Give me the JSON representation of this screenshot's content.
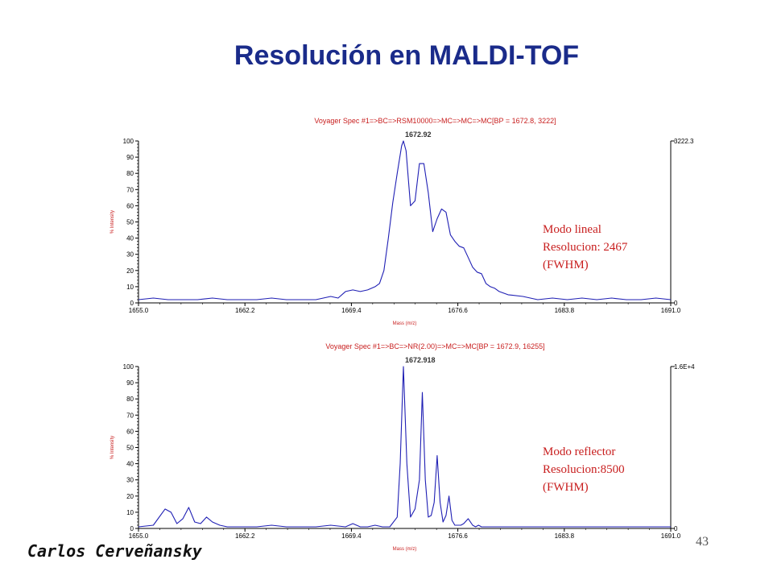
{
  "slide": {
    "title": "Resolución en MALDI-TOF",
    "author": "Carlos Cerveñansky",
    "page_number": "43"
  },
  "colors": {
    "title": "#1a2b8a",
    "trace": "#1f1fb4",
    "red_text": "#c81e1e",
    "axis": "#000000"
  },
  "chart_data": [
    {
      "type": "line",
      "title": "Voyager Spec #1=>BC=>RSM10000=>MC=>MC=>MC[BP = 1672.8, 3222]",
      "xlabel": "Mass (m/z)",
      "ylabel": "% Intensity",
      "xlim": [
        1655.0,
        1691.0
      ],
      "ylim": [
        0,
        100
      ],
      "x_ticks": [
        "1655.0",
        "1662.2",
        "1669.4",
        "1676.6",
        "1683.8",
        "1691.0"
      ],
      "y_ticks": [
        "0",
        "10",
        "20",
        "30",
        "40",
        "50",
        "60",
        "70",
        "80",
        "90",
        "100"
      ],
      "right_axis_labels": {
        "top": "3222.3",
        "bottom": "0"
      },
      "peak_label": {
        "text": "1672.92",
        "x": 1672.92,
        "y": 100
      },
      "annotation": [
        "Modo lineal",
        "Resolucion: 2467",
        "(FWHM)"
      ],
      "series": [
        {
          "x": [
            1655.0,
            1656.0,
            1657.0,
            1658.0,
            1659.0,
            1660.0,
            1661.0,
            1662.0,
            1663.0,
            1664.0,
            1665.0,
            1666.0,
            1667.0,
            1668.0,
            1668.5,
            1669.0,
            1669.5,
            1670.0,
            1670.5,
            1671.0,
            1671.3,
            1671.6,
            1671.9,
            1672.2,
            1672.5,
            1672.8,
            1672.92,
            1673.1,
            1673.4,
            1673.7,
            1674.0,
            1674.3,
            1674.6,
            1674.9,
            1675.2,
            1675.5,
            1675.8,
            1676.1,
            1676.4,
            1676.7,
            1677.0,
            1677.3,
            1677.6,
            1677.9,
            1678.2,
            1678.5,
            1678.8,
            1679.1,
            1679.4,
            1679.7,
            1680.0,
            1681.0,
            1682.0,
            1683.0,
            1684.0,
            1685.0,
            1686.0,
            1687.0,
            1688.0,
            1689.0,
            1690.0,
            1691.0
          ],
          "y": [
            2,
            3,
            2,
            2,
            2,
            3,
            2,
            2,
            2,
            3,
            2,
            2,
            2,
            4,
            3,
            7,
            8,
            7,
            8,
            10,
            12,
            20,
            40,
            62,
            80,
            97,
            100,
            94,
            60,
            63,
            86,
            86,
            68,
            44,
            52,
            58,
            56,
            42,
            38,
            35,
            34,
            28,
            22,
            19,
            18,
            12,
            10,
            9,
            7,
            6,
            5,
            4,
            2,
            3,
            2,
            3,
            2,
            3,
            2,
            2,
            3,
            2
          ]
        }
      ]
    },
    {
      "type": "line",
      "title": "Voyager Spec #1=>BC=>NR(2.00)=>MC=>MC[BP = 1672.9, 16255]",
      "xlabel": "Mass (m/z)",
      "ylabel": "% Intensity",
      "xlim": [
        1655.0,
        1691.0
      ],
      "ylim": [
        0,
        100
      ],
      "x_ticks": [
        "1655.0",
        "1662.2",
        "1669.4",
        "1676.6",
        "1683.8",
        "1691.0"
      ],
      "y_ticks": [
        "0",
        "10",
        "20",
        "30",
        "40",
        "50",
        "60",
        "70",
        "80",
        "90",
        "100"
      ],
      "right_axis_labels": {
        "top": "1.6E+4",
        "bottom": "0"
      },
      "peak_label": {
        "text": "1672.918",
        "x": 1672.918,
        "y": 100
      },
      "annotation": [
        "Modo reflector",
        "Resolucion:8500",
        "(FWHM)"
      ],
      "series": [
        {
          "x": [
            1655.0,
            1656.0,
            1656.8,
            1657.2,
            1657.6,
            1658.0,
            1658.4,
            1658.8,
            1659.2,
            1659.6,
            1660.0,
            1660.5,
            1661.0,
            1662.0,
            1663.0,
            1664.0,
            1665.0,
            1666.0,
            1667.0,
            1668.0,
            1669.0,
            1669.5,
            1670.0,
            1670.5,
            1671.0,
            1671.5,
            1672.0,
            1672.5,
            1672.7,
            1672.92,
            1673.15,
            1673.4,
            1673.7,
            1674.0,
            1674.2,
            1674.4,
            1674.6,
            1674.8,
            1675.0,
            1675.2,
            1675.4,
            1675.6,
            1675.8,
            1676.0,
            1676.2,
            1676.4,
            1676.6,
            1676.8,
            1677.0,
            1677.3,
            1677.6,
            1677.8,
            1678.0,
            1678.2,
            1678.5,
            1679.0,
            1680.0,
            1681.0,
            1682.0,
            1683.0,
            1684.0,
            1685.0,
            1686.0,
            1687.0,
            1688.0,
            1689.0,
            1690.0,
            1691.0
          ],
          "y": [
            1,
            2,
            12,
            10,
            3,
            6,
            13,
            4,
            3,
            7,
            4,
            2,
            1,
            1,
            1,
            2,
            1,
            1,
            1,
            2,
            1,
            3,
            1,
            1,
            2,
            1,
            1,
            7,
            40,
            100,
            40,
            7,
            12,
            30,
            84,
            30,
            7,
            8,
            16,
            45,
            16,
            4,
            8,
            20,
            5,
            2,
            2,
            2,
            3,
            6,
            2,
            1,
            2,
            1,
            1,
            1,
            1,
            1,
            1,
            1,
            1,
            1,
            1,
            1,
            1,
            1,
            1,
            1
          ]
        }
      ]
    }
  ]
}
